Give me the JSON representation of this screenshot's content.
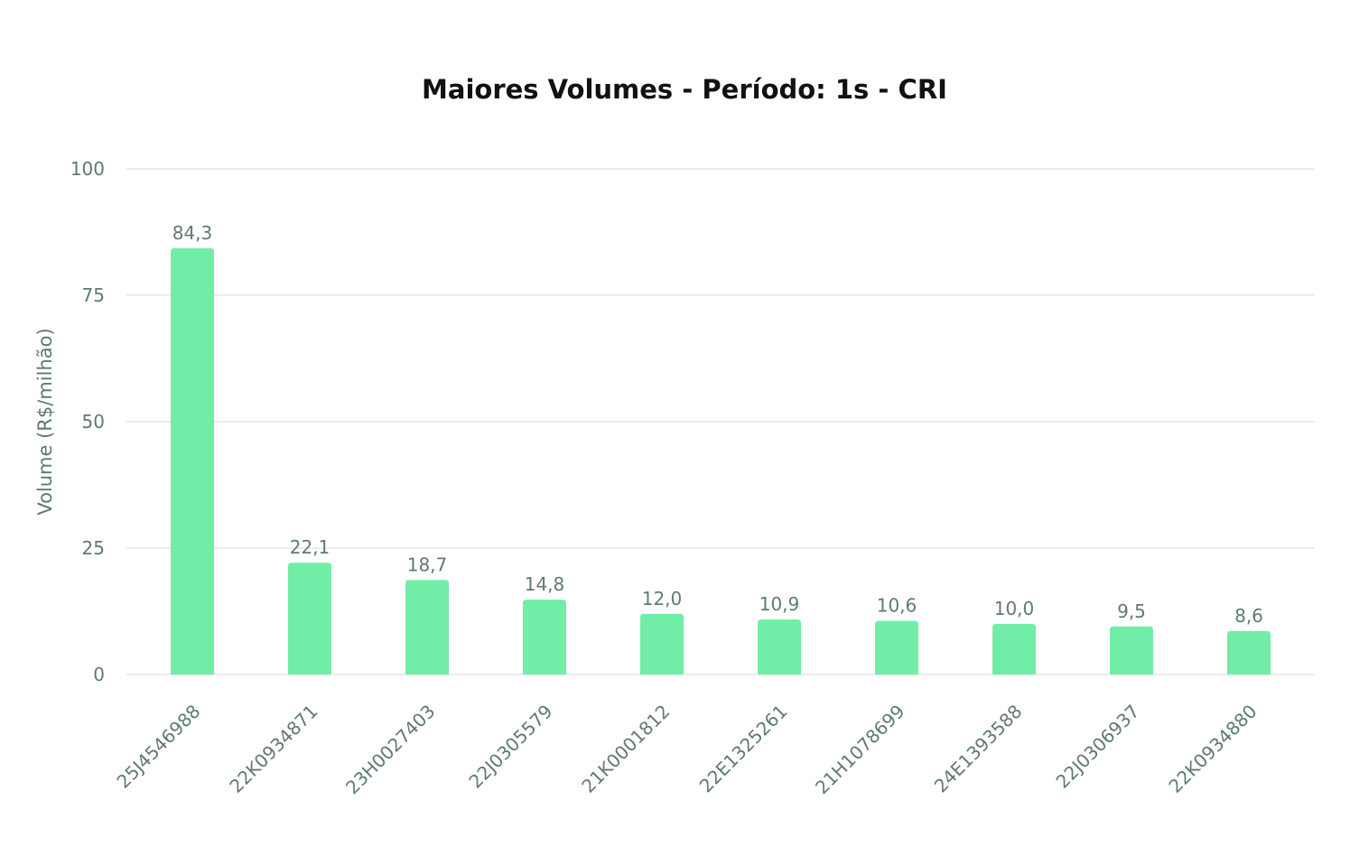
{
  "chart_data": {
    "type": "bar",
    "title": "Maiores Volumes - Período: 1s - CRI",
    "xlabel": "",
    "ylabel": "Volume (R$/milhão)",
    "ylim": [
      0,
      100
    ],
    "yticks": [
      0,
      25,
      50,
      75,
      100
    ],
    "categories": [
      "25J4546988",
      "22K0934871",
      "23H0027403",
      "22J0305579",
      "21K0001812",
      "22E1325261",
      "21H1078699",
      "24E1393588",
      "22J0306937",
      "22K0934880"
    ],
    "values": [
      84.3,
      22.1,
      18.7,
      14.8,
      12.0,
      10.9,
      10.6,
      10.0,
      9.5,
      8.6
    ],
    "value_labels": [
      "84,3",
      "22,1",
      "18,7",
      "14,8",
      "12,0",
      "10,9",
      "10,6",
      "10,0",
      "9,5",
      "8,6"
    ],
    "grid": true,
    "legend": "none",
    "colors": {
      "bar": "#72eda8",
      "grid": "#e6e6e6",
      "text": "#5f7a72",
      "title": "#111111"
    }
  }
}
